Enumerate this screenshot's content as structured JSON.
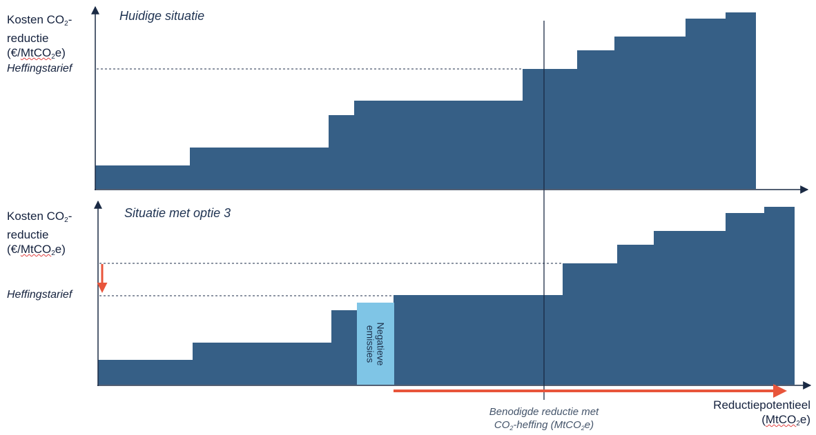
{
  "top_panel": {
    "title": "Huidige situatie",
    "y_label": {
      "line1_pre": "Kosten CO",
      "sub": "2",
      "line1_post": "-",
      "line2": "reductie",
      "line3_pre": "(€/",
      "line3_unit": "MtCO",
      "line3_sub": "2",
      "line3_post": "e)"
    },
    "levy_label": "Heffingstarief",
    "steps": [
      {
        "value": 1.0,
        "width": 1.0
      },
      {
        "value": 2.0,
        "width": 1.5
      },
      {
        "value": 4.0,
        "width": 0.3
      },
      {
        "value": 4.8,
        "width": 1.9
      },
      {
        "value": 6.5,
        "width": 0.6
      },
      {
        "value": 7.0,
        "width": 0.4
      },
      {
        "value": 8.5,
        "width": 0.9
      },
      {
        "value": 9.5,
        "width": 0.6
      },
      {
        "value": 10.0,
        "width": 0.3
      }
    ]
  },
  "bottom_panel": {
    "title": "Situatie met optie 3",
    "y_label": {
      "line1_pre": "Kosten CO",
      "sub": "2",
      "line1_post": "-",
      "line2": "reductie",
      "line3_pre": "(€/",
      "line3_unit": "MtCO",
      "line3_sub": "2",
      "line3_post": "e)"
    },
    "levy_label": "Heffingstarief",
    "negative_emissions_label": [
      "Negatieve",
      "emissies"
    ],
    "steps": [
      {
        "value": 1.0,
        "width": 1.0
      },
      {
        "value": 2.0,
        "width": 1.5
      },
      {
        "value": 3.0,
        "width": 0.3
      },
      {
        "value": 3.5,
        "width": 0.4,
        "highlight": true
      },
      {
        "value": 4.0,
        "width": 1.9
      },
      {
        "value": 6.0,
        "width": 0.6
      },
      {
        "value": 6.5,
        "width": 0.4
      },
      {
        "value": 7.2,
        "width": 0.9
      },
      {
        "value": 8.0,
        "width": 0.4
      },
      {
        "value": 8.5,
        "width": 0.3
      }
    ]
  },
  "x_axis": {
    "label_line1": "Reductiepotentieel",
    "label_line2_pre": "(",
    "label_line2_unit": "MtCO",
    "label_line2_sub": "2",
    "label_line2_post": "e)"
  },
  "needed_reduction": {
    "line1": "Benodigde reductie met",
    "line2_pre": "CO",
    "line2_sub": "2",
    "line2_post": "-heffing (MtCO",
    "line2_sub2": "2",
    "line2_post2": "e)"
  },
  "colors": {
    "bars": "#365f86",
    "highlight": "#7fc5e6",
    "arrow": "#e8553b",
    "axis": "#1a2a44"
  }
}
